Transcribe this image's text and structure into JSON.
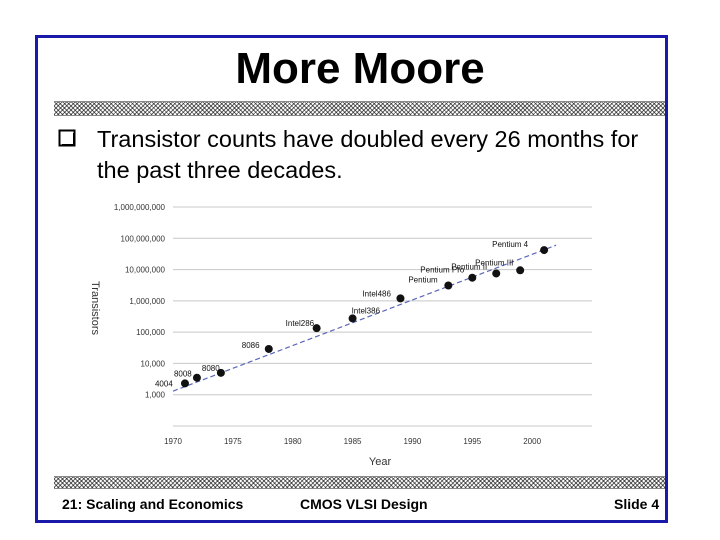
{
  "slide": {
    "title": "More Moore",
    "bullet": "Transistor counts have doubled every 26 months for the past three decades.",
    "footer_left": "21: Scaling and Economics",
    "footer_center": "CMOS VLSI Design",
    "footer_right": "Slide 4"
  },
  "colors": {
    "frame": "#1a1aa8",
    "trend_line": "#5a66b8",
    "points": "#111111"
  },
  "chart_data": {
    "type": "scatter",
    "title": "",
    "xlabel": "Year",
    "ylabel": "Transistors",
    "xlim": [
      1970,
      2005
    ],
    "ylim": [
      100,
      1000000000
    ],
    "yscale": "log",
    "grid": "horizontal",
    "x_ticks": [
      1970,
      1975,
      1980,
      1985,
      1990,
      1995,
      2000
    ],
    "x_tick_labels": [
      "1970",
      "1975",
      "1980",
      "1985",
      "1990",
      "1995",
      "2000"
    ],
    "y_ticks": [
      1000,
      10000,
      100000,
      1000000,
      10000000,
      100000000,
      1000000000
    ],
    "y_tick_labels": [
      "1,000",
      "10,000",
      "100,000",
      "1,000,000",
      "10,000,000",
      "100,000,000",
      "1,000,000,000"
    ],
    "points": [
      {
        "label": "4004",
        "x": 1971,
        "y": 2300
      },
      {
        "label": "8008",
        "x": 1972,
        "y": 3500
      },
      {
        "label": "8080",
        "x": 1974,
        "y": 5000
      },
      {
        "label": "8086",
        "x": 1978,
        "y": 29000
      },
      {
        "label": "Intel286",
        "x": 1982,
        "y": 134000
      },
      {
        "label": "Intel386",
        "x": 1985,
        "y": 275000
      },
      {
        "label": "Intel486",
        "x": 1989,
        "y": 1200000
      },
      {
        "label": "Pentium",
        "x": 1993,
        "y": 3100000
      },
      {
        "label": "Pentium Pro",
        "x": 1995,
        "y": 5500000
      },
      {
        "label": "Pentium II",
        "x": 1997,
        "y": 7500000
      },
      {
        "label": "Pentium III",
        "x": 1999,
        "y": 9500000
      },
      {
        "label": "Pentium 4",
        "x": 2001,
        "y": 42000000
      }
    ],
    "trend": {
      "x": [
        1970,
        2002
      ],
      "y": [
        1300,
        60000000
      ]
    }
  }
}
